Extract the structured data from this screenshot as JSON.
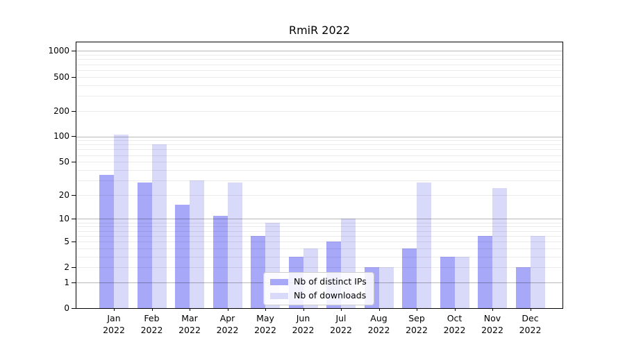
{
  "chart_data": {
    "type": "bar",
    "title": "RmiR 2022",
    "categories": [
      "Jan",
      "Feb",
      "Mar",
      "Apr",
      "May",
      "Jun",
      "Jul",
      "Aug",
      "Sep",
      "Oct",
      "Nov",
      "Dec"
    ],
    "category_year": "2022",
    "series": [
      {
        "name": "Nb of distinct IPs",
        "color": "#a8a8f8",
        "values": [
          35,
          28,
          15,
          11,
          6,
          3,
          5,
          2,
          4,
          3,
          6,
          2
        ]
      },
      {
        "name": "Nb of downloads",
        "color": "#d9d9fa",
        "values": [
          105,
          80,
          30,
          28,
          9,
          4,
          10,
          2,
          28,
          3,
          24,
          6
        ]
      }
    ],
    "y_scale": "log10(1+x)",
    "y_tick_values": [
      0,
      1,
      2,
      5,
      10,
      20,
      50,
      100,
      200,
      500,
      1000
    ],
    "y_tick_labels": [
      "0",
      "1",
      "2",
      "5",
      "10",
      "20",
      "50",
      "100",
      "200",
      "500",
      "1000"
    ],
    "y_major_gridlines": [
      1,
      10,
      100,
      1000
    ],
    "y_minor_gridlines": [
      2,
      3,
      4,
      5,
      6,
      7,
      8,
      9,
      20,
      30,
      40,
      50,
      60,
      70,
      80,
      90,
      200,
      300,
      400,
      500,
      600,
      700,
      800,
      900
    ],
    "ylim": [
      0,
      1200
    ],
    "grid": true,
    "legend_position": "lower center",
    "colors": {
      "axis": "#000000",
      "major_grid": "#b8b8b8",
      "minor_grid": "#ebebeb",
      "legend_border": "#cccccc"
    }
  }
}
